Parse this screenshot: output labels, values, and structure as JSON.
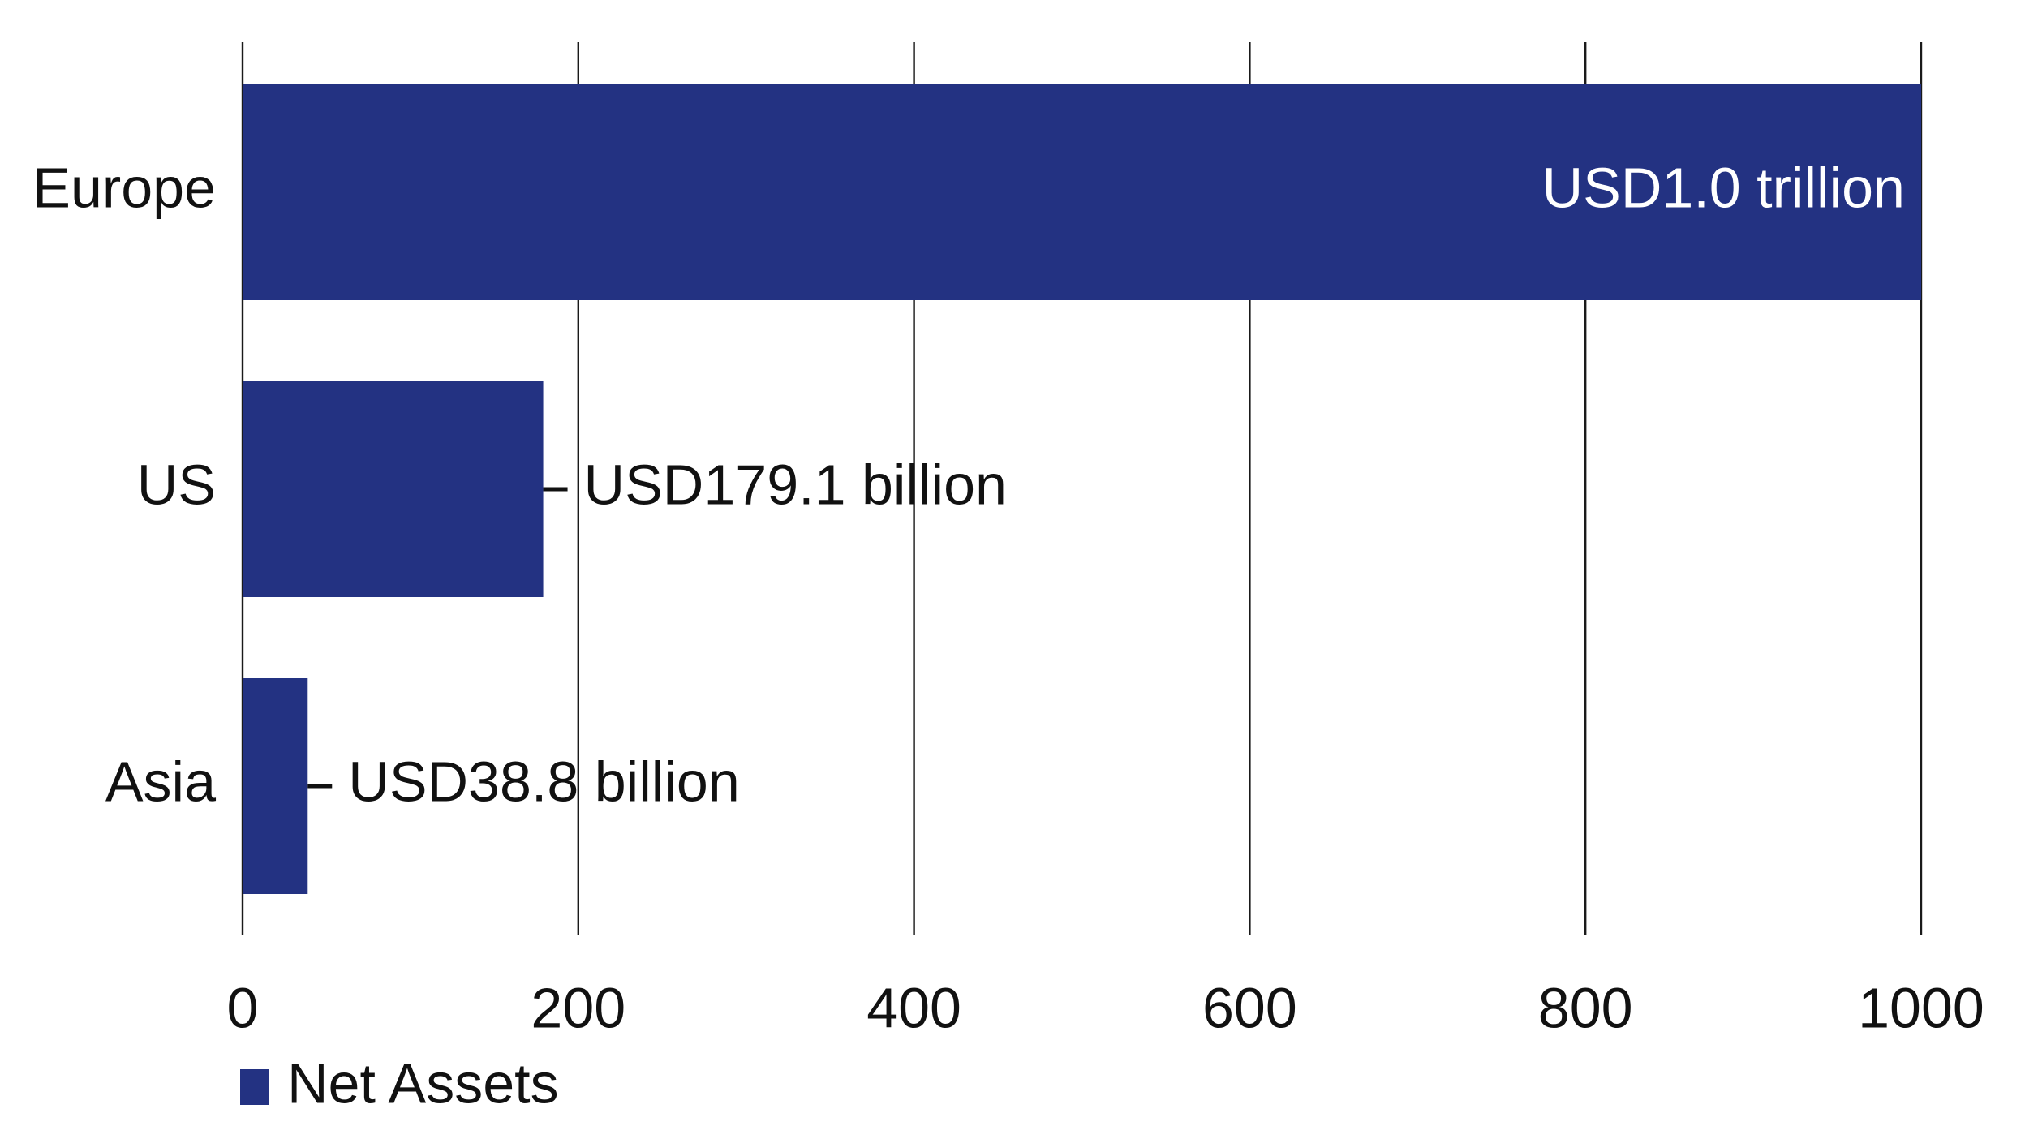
{
  "chart_data": {
    "type": "bar",
    "orientation": "horizontal",
    "categories": [
      "Europe",
      "US",
      "Asia"
    ],
    "series": [
      {
        "name": "Net Assets",
        "values": [
          1000,
          179.1,
          38.8
        ],
        "data_labels": [
          "USD1.0 trillion",
          "USD179.1 billion",
          "USD38.8 billion"
        ],
        "color": "#233282"
      }
    ],
    "xlim": [
      0,
      1000
    ],
    "x_ticks": [
      0,
      200,
      400,
      600,
      800,
      1000
    ],
    "x_tick_labels": [
      "0",
      "200",
      "400",
      "600",
      "800",
      "1000"
    ],
    "grid": "vertical",
    "legend": {
      "position": "bottom-left",
      "entries": [
        "Net Assets"
      ]
    },
    "title": "",
    "xlabel": "",
    "ylabel": ""
  }
}
